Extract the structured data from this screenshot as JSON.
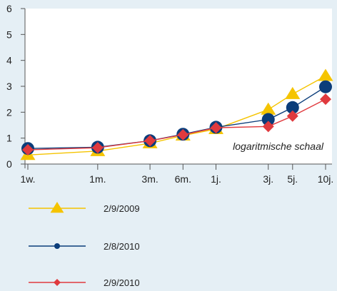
{
  "chart_data": {
    "type": "line",
    "x_scale": "log",
    "categories": [
      "1w.",
      "1m.",
      "3m.",
      "6m.",
      "1j.",
      "3j.",
      "5j.",
      "10j."
    ],
    "x_positions_years": [
      0.0192,
      0.0833,
      0.25,
      0.5,
      1,
      3,
      5,
      10
    ],
    "ylim": [
      0,
      6
    ],
    "yticks": [
      0,
      1,
      2,
      3,
      4,
      5,
      6
    ],
    "annotation": "logaritmische schaal",
    "legend_position": "bottom",
    "grid": false,
    "series": [
      {
        "name": "2/9/2009",
        "color": "#f5c400",
        "marker": "triangle",
        "values": [
          0.35,
          0.5,
          0.8,
          1.1,
          1.35,
          2.1,
          2.7,
          3.4
        ]
      },
      {
        "name": "2/8/2010",
        "color": "#0b3d7a",
        "marker": "circle",
        "values": [
          0.6,
          0.65,
          0.9,
          1.15,
          1.42,
          1.72,
          2.18,
          2.98
        ]
      },
      {
        "name": "2/9/2010",
        "color": "#e03a3e",
        "marker": "diamond",
        "values": [
          0.55,
          0.63,
          0.9,
          1.13,
          1.4,
          1.45,
          1.85,
          2.5
        ]
      }
    ]
  }
}
